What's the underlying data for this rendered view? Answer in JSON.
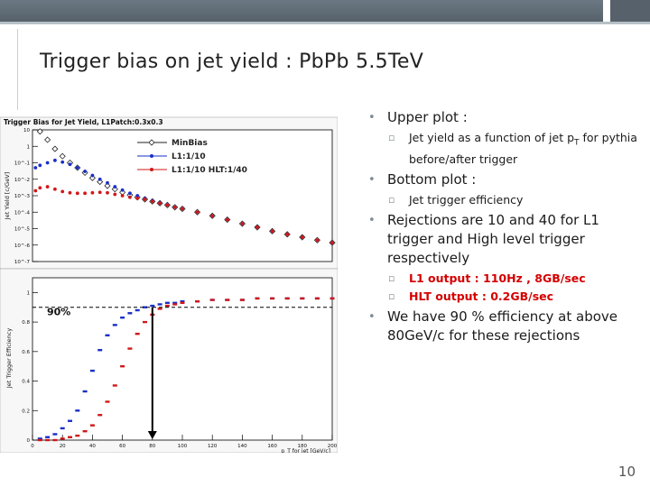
{
  "slide": {
    "title": "Trigger bias on jet yield : PbPb 5.5TeV",
    "page_number": "10",
    "bullets": [
      {
        "text": "Upper plot :",
        "sub": [
          {
            "text": "Jet yield as a function of jet pT for pythia before/after trigger",
            "pre": "Jet yield as a function of jet p",
            "subscript": "T",
            "post": " for pythia before/after trigger",
            "highlight": false
          }
        ]
      },
      {
        "text": "Bottom plot :",
        "sub": [
          {
            "text": "Jet trigger efficiency",
            "highlight": false
          }
        ]
      },
      {
        "text": "Rejections are 10 and 40 for L1 trigger and High level trigger respectively",
        "sub": [
          {
            "text": "L1 output : 110Hz , 8GB/sec",
            "highlight": true
          },
          {
            "text": "HLT output : 0.2GB/sec",
            "highlight": true
          }
        ]
      },
      {
        "text": "We have 90 % efficiency at above 80GeV/c for these rejections",
        "sub": []
      }
    ],
    "colors": {
      "accent_red": "#d40000",
      "bullet_gray": "#7f8b95"
    }
  },
  "chart_data": [
    {
      "type": "scatter",
      "title": "Trigger Bias for Jet Yield, L1Patch:0.3x0.3",
      "ylabel": "Jet Yield [c/GeV]",
      "ylog": true,
      "yticks": [
        "10^-7",
        "10^-6",
        "10^-5",
        "10^-4",
        "10^-3",
        "10^-2",
        "10^-1",
        "1",
        "10"
      ],
      "xlim": [
        0,
        200
      ],
      "series": [
        {
          "name": "MinBias",
          "marker": "open-diamond",
          "color": "#222222",
          "x": [
            5,
            10,
            15,
            20,
            25,
            30,
            35,
            40,
            45,
            50,
            55,
            60,
            65,
            70,
            75,
            80,
            85,
            90,
            95,
            100,
            110,
            120,
            130,
            140,
            150,
            160,
            170,
            180,
            190,
            200
          ],
          "y": [
            8,
            2.5,
            0.7,
            0.25,
            0.1,
            0.05,
            0.025,
            0.012,
            0.007,
            0.004,
            0.0025,
            0.0016,
            0.0011,
            0.0008,
            0.0006,
            0.00045,
            0.00035,
            0.00027,
            0.0002,
            0.00016,
            0.0001,
            6e-05,
            3.5e-05,
            2e-05,
            1.2e-05,
            7e-06,
            4.5e-06,
            3e-06,
            2e-06,
            1.4e-06
          ]
        },
        {
          "name": "L1:1/10",
          "marker": "filled-circle",
          "color": "#1a2fc8",
          "x": [
            2,
            5,
            10,
            15,
            20,
            25,
            30,
            35,
            40,
            45,
            50,
            55,
            60,
            65,
            70,
            75,
            80,
            85,
            90,
            95,
            100,
            110,
            120,
            130,
            140,
            150,
            160,
            170,
            180,
            190,
            200
          ],
          "y": [
            0.05,
            0.07,
            0.1,
            0.14,
            0.11,
            0.08,
            0.05,
            0.03,
            0.017,
            0.01,
            0.006,
            0.0035,
            0.0022,
            0.0014,
            0.001,
            0.0007,
            0.0005,
            0.00037,
            0.00028,
            0.0002,
            0.00016,
            0.0001,
            6e-05,
            3.5e-05,
            2e-05,
            1.2e-05,
            7e-06,
            4.5e-06,
            3e-06,
            2e-06,
            1.4e-06
          ]
        },
        {
          "name": "L1:1/10 HLT:1/40",
          "marker": "filled-circle",
          "color": "#d01818",
          "x": [
            2,
            5,
            10,
            15,
            20,
            25,
            30,
            35,
            40,
            45,
            50,
            55,
            60,
            65,
            70,
            75,
            80,
            85,
            90,
            95,
            100,
            110,
            120,
            130,
            140,
            150,
            160,
            170,
            180,
            190,
            200
          ],
          "y": [
            0.002,
            0.003,
            0.0035,
            0.0025,
            0.0018,
            0.0015,
            0.0014,
            0.0014,
            0.0015,
            0.0016,
            0.0015,
            0.0012,
            0.001,
            0.0008,
            0.0007,
            0.0006,
            0.00045,
            0.00035,
            0.00027,
            0.0002,
            0.00016,
            0.0001,
            6e-05,
            3.5e-05,
            2e-05,
            1.2e-05,
            7e-06,
            4.5e-06,
            3e-06,
            2e-06,
            1.4e-06
          ]
        }
      ]
    },
    {
      "type": "scatter",
      "ylabel": "Jet Trigger Efficiency",
      "xlabel": "p_T for jet [GeV/c]",
      "xlim": [
        0,
        200
      ],
      "ylim": [
        0,
        1.1
      ],
      "xticks": [
        "0",
        "20",
        "40",
        "60",
        "80",
        "100",
        "120",
        "140",
        "160",
        "180",
        "200"
      ],
      "yticks": [
        "0",
        "0.2",
        "0.4",
        "0.6",
        "0.8",
        "1"
      ],
      "annotation": {
        "text": "90%",
        "y": 0.9,
        "arrow_x": 80
      },
      "series": [
        {
          "name": "L1:1/10",
          "color": "#1a2fc8",
          "x": [
            5,
            10,
            15,
            20,
            25,
            30,
            35,
            40,
            45,
            50,
            55,
            60,
            65,
            70,
            75,
            80,
            85,
            90,
            95,
            100,
            110,
            120,
            130,
            140,
            150,
            160,
            170,
            180,
            190,
            200
          ],
          "y": [
            0.01,
            0.02,
            0.04,
            0.08,
            0.13,
            0.2,
            0.33,
            0.47,
            0.61,
            0.71,
            0.78,
            0.83,
            0.86,
            0.88,
            0.9,
            0.91,
            0.92,
            0.93,
            0.93,
            0.94,
            0.94,
            0.95,
            0.95,
            0.95,
            0.96,
            0.96,
            0.96,
            0.96,
            0.96,
            0.96
          ]
        },
        {
          "name": "L1:1/10 HLT:1/40",
          "color": "#d01818",
          "x": [
            5,
            10,
            15,
            20,
            25,
            30,
            35,
            40,
            45,
            50,
            55,
            60,
            65,
            70,
            75,
            80,
            85,
            90,
            95,
            100,
            110,
            120,
            130,
            140,
            150,
            160,
            170,
            180,
            190,
            200
          ],
          "y": [
            0.0,
            0.0,
            0.0,
            0.01,
            0.02,
            0.03,
            0.06,
            0.1,
            0.17,
            0.26,
            0.37,
            0.5,
            0.62,
            0.72,
            0.8,
            0.85,
            0.89,
            0.91,
            0.92,
            0.93,
            0.94,
            0.95,
            0.95,
            0.95,
            0.96,
            0.96,
            0.96,
            0.96,
            0.96,
            0.96
          ]
        }
      ]
    }
  ]
}
